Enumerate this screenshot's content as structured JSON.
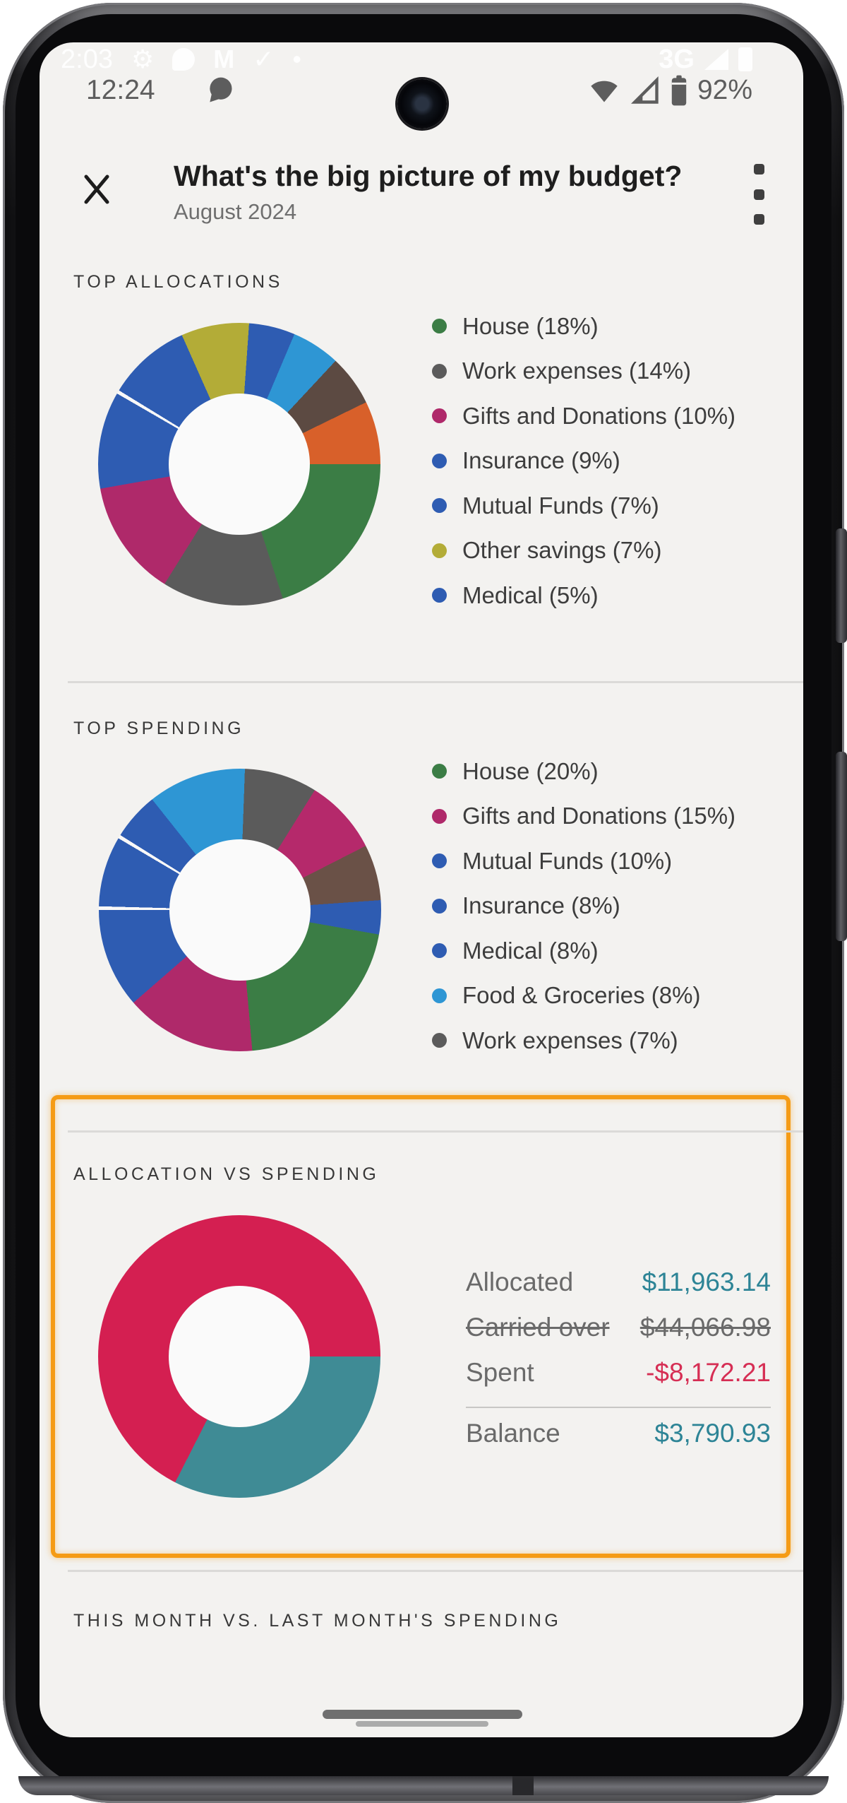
{
  "status_bar": {
    "time": "12:24",
    "battery_pct": "92%",
    "ghost_time": "2:03",
    "ghost_network": "3G",
    "ghost_icons": {
      "gear": "⚙",
      "gmail": "M",
      "check": "✓",
      "dot": "•"
    }
  },
  "header": {
    "title": "What's the big picture of my budget?",
    "subtitle": "August 2024"
  },
  "sections": {
    "top_allocations": {
      "title": "TOP ALLOCATIONS"
    },
    "top_spending": {
      "title": "TOP SPENDING"
    },
    "allocation_vs_spending": {
      "title": "ALLOCATION VS SPENDING",
      "rows": [
        {
          "label": "Allocated",
          "value": "$11,963.14",
          "color": "#2d8496"
        },
        {
          "label": "Carried over",
          "value": "$44,066.98",
          "color": "#6a6a6a",
          "strike": true
        },
        {
          "label": "Spent",
          "value": "-$8,172.21",
          "color": "#d62e54"
        },
        {
          "label": "Balance",
          "value": "$3,790.93",
          "color": "#2d8496",
          "divider_above": true
        }
      ]
    },
    "month_vs_month": {
      "title": "THIS MONTH VS. LAST MONTH'S SPENDING"
    }
  },
  "chart_data": [
    {
      "type": "pie",
      "title": "TOP ALLOCATIONS",
      "legend": [
        {
          "label": "House",
          "value": 18,
          "color": "#3b7d45"
        },
        {
          "label": "Work expenses",
          "value": 14,
          "color": "#5b5b5b"
        },
        {
          "label": "Gifts and Donations",
          "value": 10,
          "color": "#af296a"
        },
        {
          "label": "Insurance",
          "value": 9,
          "color": "#2e5cb2"
        },
        {
          "label": "Mutual Funds",
          "value": 7,
          "color": "#2e5cb2"
        },
        {
          "label": "Other savings",
          "value": 7,
          "color": "#b3ac37"
        },
        {
          "label": "Medical",
          "value": 5,
          "color": "#2e5cb2"
        }
      ],
      "note": "remaining ~30% shown as unlabeled slices (light blue, brown, orange)",
      "render": {
        "rotate": 336,
        "segments": [
          {
            "color": "#b3ac37",
            "deg": 28
          },
          {
            "color": "#2e5cb2",
            "deg": 19
          },
          {
            "color": "#2e96d4",
            "deg": 20
          },
          {
            "color": "#5c4a42",
            "deg": 21
          },
          {
            "color": "#d8602a",
            "deg": 26
          },
          {
            "color": "#3b7d45",
            "deg": 72
          },
          {
            "color": "#5b5b5b",
            "deg": 50
          },
          {
            "color": "#af296a",
            "deg": 48
          },
          {
            "color": "#2e5cb2",
            "deg": 40
          },
          {
            "color": "rgba(255,255,255,0.5)",
            "deg": 1.5
          },
          {
            "color": "#2e5cb2",
            "deg": 34.5
          }
        ]
      }
    },
    {
      "type": "pie",
      "title": "TOP SPENDING",
      "legend": [
        {
          "label": "House",
          "value": 20,
          "color": "#3b7d45"
        },
        {
          "label": "Gifts and Donations",
          "value": 15,
          "color": "#af296a"
        },
        {
          "label": "Mutual Funds",
          "value": 10,
          "color": "#2e5cb2"
        },
        {
          "label": "Insurance",
          "value": 8,
          "color": "#2e5cb2"
        },
        {
          "label": "Medical",
          "value": 8,
          "color": "#2e5cb2"
        },
        {
          "label": "Food & Groceries",
          "value": 8,
          "color": "#2e96d4"
        },
        {
          "label": "Work expenses",
          "value": 7,
          "color": "#5b5b5b"
        }
      ],
      "note": "remaining ~24% shown as unlabeled slices (magenta, brown, blue)",
      "render": {
        "rotate": 2,
        "segments": [
          {
            "color": "#5b5b5b",
            "deg": 30
          },
          {
            "color": "#b5296b",
            "deg": 31
          },
          {
            "color": "#6a5147",
            "deg": 23
          },
          {
            "color": "#2e5cb2",
            "deg": 14
          },
          {
            "color": "#3b7d45",
            "deg": 75
          },
          {
            "color": "#af296a",
            "deg": 54
          },
          {
            "color": "#2e5cb2",
            "deg": 41
          },
          {
            "color": "rgba(255,255,255,0.5)",
            "deg": 1.5
          },
          {
            "color": "#2e5cb2",
            "deg": 29
          },
          {
            "color": "rgba(255,255,255,0.5)",
            "deg": 1.5
          },
          {
            "color": "#2e5cb2",
            "deg": 19.5
          },
          {
            "color": "#2e96d4",
            "deg": 40.5
          }
        ]
      }
    },
    {
      "type": "pie",
      "title": "ALLOCATION VS SPENDING",
      "series": [
        {
          "name": "Spent share of allocated",
          "value": 68.3,
          "color": "#d41f51"
        },
        {
          "name": "Balance share of allocated",
          "value": 31.7,
          "color": "#3f8b95"
        }
      ],
      "render": {
        "rotate": 90,
        "segments": [
          {
            "color": "#3f8b95",
            "deg": 117
          },
          {
            "color": "#d41f51",
            "deg": 243
          }
        ]
      }
    }
  ]
}
